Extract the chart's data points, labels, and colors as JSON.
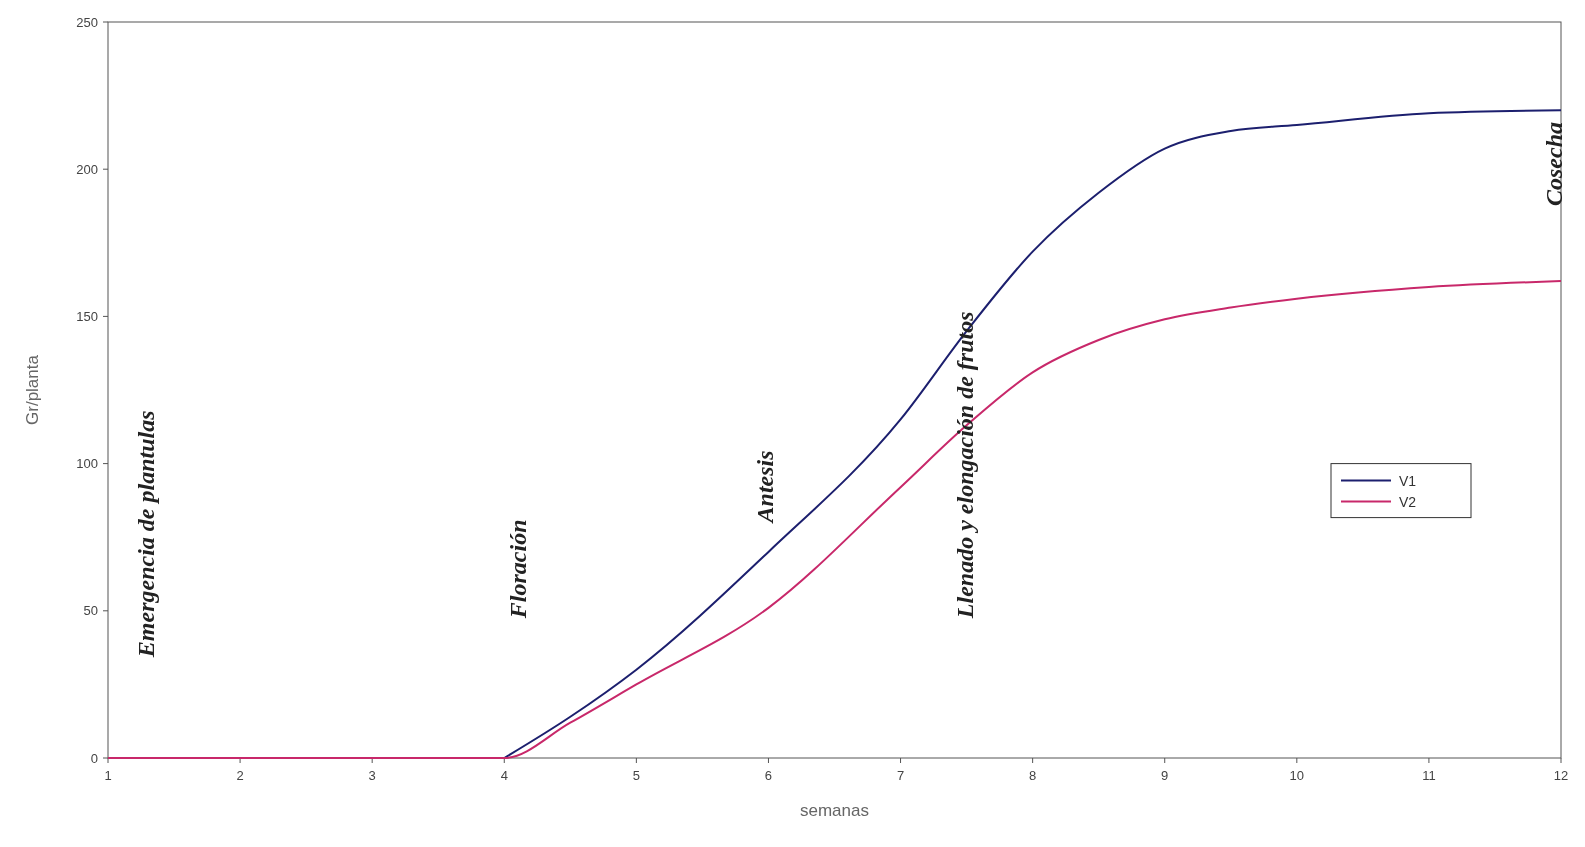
{
  "chart_data": {
    "type": "line",
    "xlabel": "semanas",
    "ylabel": "Gr/planta",
    "xlim": [
      1,
      12
    ],
    "xticks": [
      1,
      2,
      3,
      4,
      5,
      6,
      7,
      8,
      9,
      10,
      11,
      12
    ],
    "ylim": [
      0,
      250
    ],
    "yticks": [
      0,
      50,
      100,
      150,
      200,
      250
    ],
    "grid": false,
    "legend": "right",
    "marker": "none",
    "line_style": "solid",
    "series": [
      {
        "name": "V1",
        "color": "#1c1f6e",
        "x": [
          4,
          4.5,
          5,
          6,
          7,
          7.5,
          8,
          8.5,
          9,
          9.5,
          10,
          11,
          12
        ],
        "values": [
          0,
          14,
          30,
          70,
          115,
          145,
          172,
          192,
          207,
          213,
          215,
          219,
          220
        ]
      },
      {
        "name": "V2",
        "color": "#c8286a",
        "x": [
          1,
          2,
          3,
          4,
          4.5,
          5,
          6,
          7,
          7.5,
          8,
          8.5,
          9,
          9.5,
          10,
          11,
          12
        ],
        "values": [
          0,
          0,
          0,
          0,
          12,
          25,
          51,
          92,
          113,
          131,
          142,
          149,
          153,
          156,
          160,
          162
        ]
      }
    ],
    "annotations": [
      "Emergencia de plantulas",
      "Floración",
      "Antesis",
      "Llenado y elongación de frutos",
      "Cosecha"
    ]
  }
}
